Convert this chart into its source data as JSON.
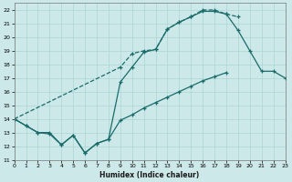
{
  "xlabel": "Humidex (Indice chaleur)",
  "xlim": [
    0,
    23
  ],
  "ylim": [
    11,
    22.5
  ],
  "xticks": [
    0,
    1,
    2,
    3,
    4,
    5,
    6,
    7,
    8,
    9,
    10,
    11,
    12,
    13,
    14,
    15,
    16,
    17,
    18,
    19,
    20,
    21,
    22,
    23
  ],
  "yticks": [
    11,
    12,
    13,
    14,
    15,
    16,
    17,
    18,
    19,
    20,
    21,
    22
  ],
  "bg_color": "#cce8e8",
  "grid_color": "#aad4d4",
  "line_color": "#1a6b6b",
  "line1_x": [
    0,
    9,
    10,
    11,
    12,
    13,
    14,
    15,
    16,
    17,
    18,
    19
  ],
  "line1_y": [
    14,
    17.8,
    18.8,
    19.0,
    19.1,
    20.6,
    21.1,
    21.5,
    22.0,
    22.0,
    21.7,
    21.5
  ],
  "line2_x": [
    0,
    1,
    2,
    3,
    4,
    5,
    6,
    7,
    8,
    9,
    10,
    11,
    12,
    13,
    14,
    15,
    16,
    17,
    18,
    19,
    20,
    21,
    22,
    23
  ],
  "line2_y": [
    14,
    13.5,
    13.0,
    12.9,
    12.1,
    12.8,
    11.5,
    12.2,
    12.5,
    16.7,
    17.8,
    18.9,
    19.1,
    20.6,
    21.1,
    21.5,
    21.9,
    21.9,
    21.7,
    20.5,
    19.0,
    17.5,
    17.5,
    17.0
  ],
  "line3_x": [
    0,
    1,
    2,
    3,
    4,
    5,
    6,
    7,
    8,
    9,
    10,
    11,
    12,
    13,
    14,
    15,
    16,
    17,
    18,
    19,
    20,
    21,
    22,
    23
  ],
  "line3_y": [
    14,
    13.5,
    13.0,
    13.0,
    12.1,
    12.8,
    11.5,
    12.2,
    12.5,
    13.9,
    14.3,
    14.8,
    15.2,
    15.6,
    16.0,
    16.4,
    16.8,
    17.1,
    17.4,
    null,
    null,
    null,
    null,
    null
  ]
}
